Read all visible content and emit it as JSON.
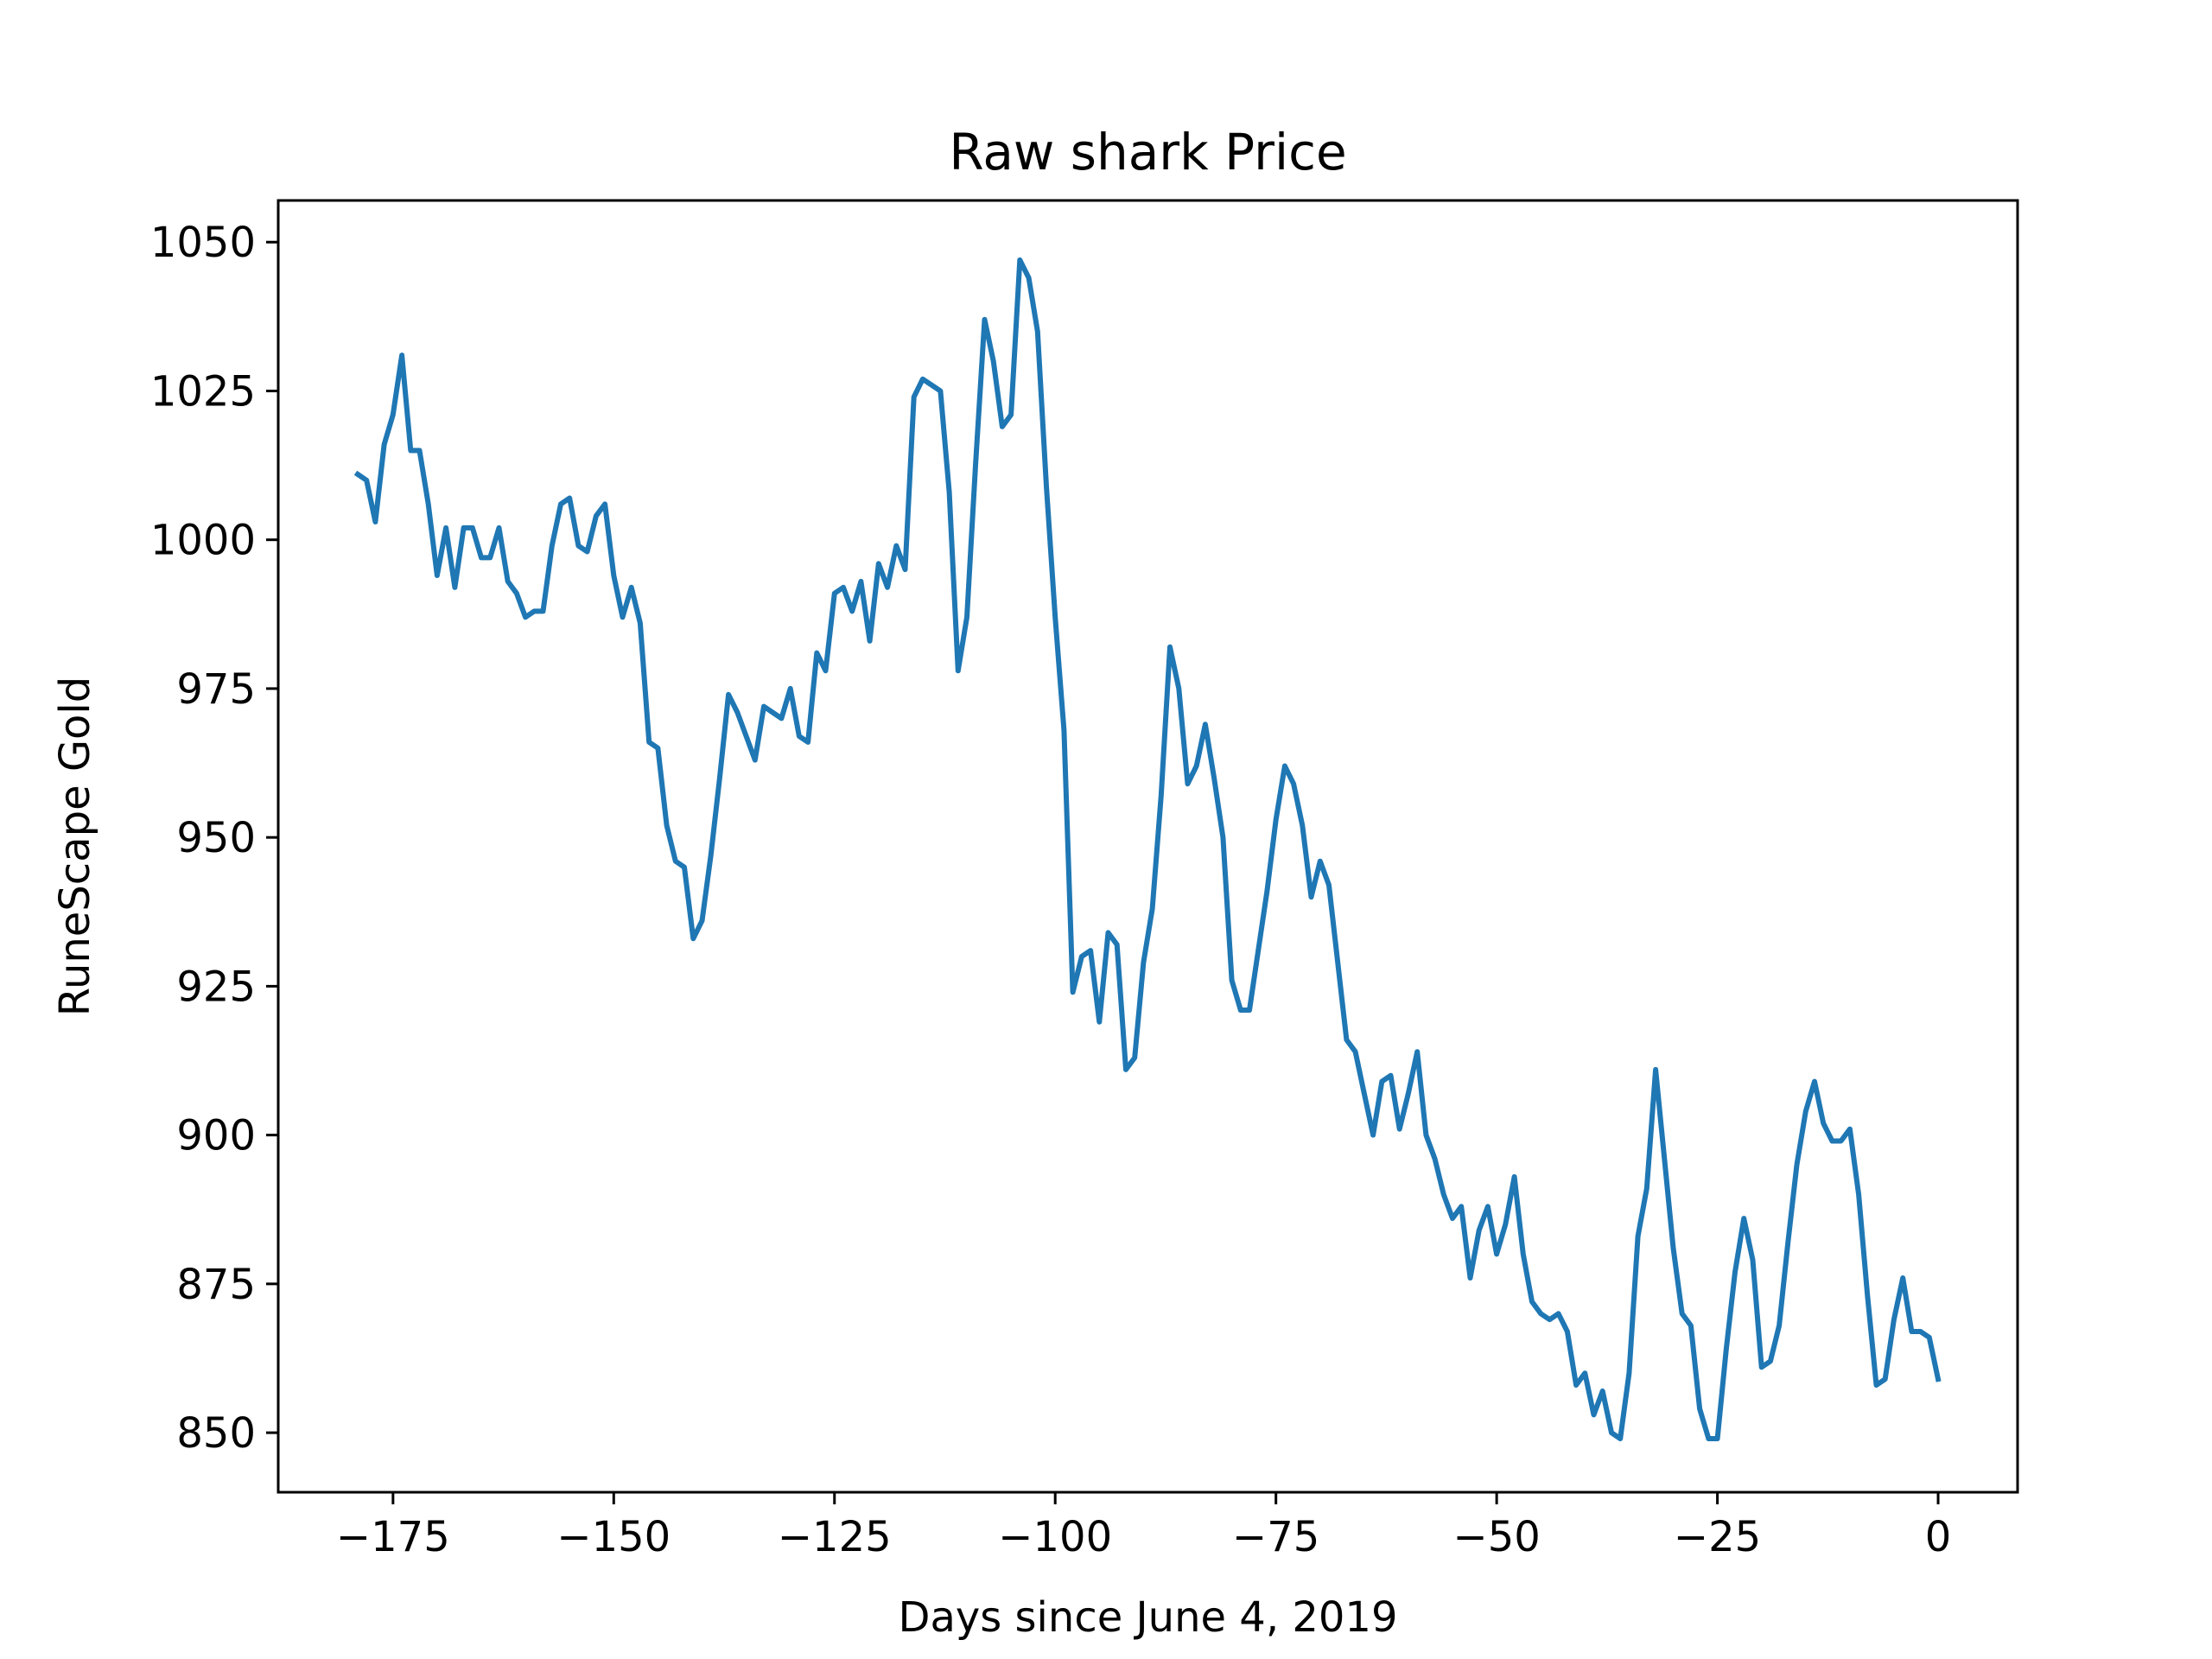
{
  "chart_data": {
    "type": "line",
    "title": "Raw shark Price",
    "xlabel": "Days since June 4, 2019",
    "ylabel": "RuneScape Gold",
    "xlim": [
      -188,
      9
    ],
    "ylim": [
      840,
      1057
    ],
    "xticks": [
      -175,
      -150,
      -125,
      -100,
      -75,
      -50,
      -25,
      0
    ],
    "xtick_labels": [
      "−175",
      "−150",
      "−125",
      "−100",
      "−75",
      "−50",
      "−25",
      "0"
    ],
    "yticks": [
      850,
      875,
      900,
      925,
      950,
      975,
      1000,
      1025,
      1050
    ],
    "ytick_labels": [
      "850",
      "875",
      "900",
      "925",
      "950",
      "975",
      "1000",
      "1025",
      "1050"
    ],
    "grid": false,
    "series": [
      {
        "color": "#1f77b4",
        "points": [
          [
            -179,
            1011
          ],
          [
            -178,
            1010
          ],
          [
            -177,
            1003
          ],
          [
            -176,
            1016
          ],
          [
            -175,
            1021
          ],
          [
            -174,
            1031
          ],
          [
            -173,
            1015
          ],
          [
            -172,
            1015
          ],
          [
            -171,
            1006
          ],
          [
            -170,
            994
          ],
          [
            -169,
            1002
          ],
          [
            -168,
            992
          ],
          [
            -167,
            1002
          ],
          [
            -166,
            1002
          ],
          [
            -165,
            997
          ],
          [
            -164,
            997
          ],
          [
            -163,
            1002
          ],
          [
            -162,
            993
          ],
          [
            -161,
            991
          ],
          [
            -160,
            987
          ],
          [
            -159,
            988
          ],
          [
            -158,
            988
          ],
          [
            -157,
            999
          ],
          [
            -156,
            1006
          ],
          [
            -155,
            1007
          ],
          [
            -154,
            999
          ],
          [
            -153,
            998
          ],
          [
            -152,
            1004
          ],
          [
            -151,
            1006
          ],
          [
            -150,
            994
          ],
          [
            -149,
            987
          ],
          [
            -148,
            992
          ],
          [
            -147,
            986
          ],
          [
            -146,
            966
          ],
          [
            -145,
            965
          ],
          [
            -144,
            952
          ],
          [
            -143,
            946
          ],
          [
            -142,
            945
          ],
          [
            -141,
            933
          ],
          [
            -140,
            936
          ],
          [
            -139,
            947
          ],
          [
            -138,
            960
          ],
          [
            -137,
            974
          ],
          [
            -136,
            971
          ],
          [
            -135,
            967
          ],
          [
            -134,
            963
          ],
          [
            -133,
            972
          ],
          [
            -132,
            971
          ],
          [
            -131,
            970
          ],
          [
            -130,
            975
          ],
          [
            -129,
            967
          ],
          [
            -128,
            966
          ],
          [
            -127,
            981
          ],
          [
            -126,
            978
          ],
          [
            -125,
            991
          ],
          [
            -124,
            992
          ],
          [
            -123,
            988
          ],
          [
            -122,
            993
          ],
          [
            -121,
            983
          ],
          [
            -120,
            996
          ],
          [
            -119,
            992
          ],
          [
            -118,
            999
          ],
          [
            -117,
            995
          ],
          [
            -116,
            1024
          ],
          [
            -115,
            1027
          ],
          [
            -114,
            1026
          ],
          [
            -113,
            1025
          ],
          [
            -112,
            1008
          ],
          [
            -111,
            978
          ],
          [
            -110,
            987
          ],
          [
            -109,
            1013
          ],
          [
            -108,
            1037
          ],
          [
            -107,
            1030
          ],
          [
            -106,
            1019
          ],
          [
            -105,
            1021
          ],
          [
            -104,
            1047
          ],
          [
            -103,
            1044
          ],
          [
            -102,
            1035
          ],
          [
            -101,
            1009
          ],
          [
            -100,
            987
          ],
          [
            -99,
            968
          ],
          [
            -98,
            924
          ],
          [
            -97,
            930
          ],
          [
            -96,
            931
          ],
          [
            -95,
            919
          ],
          [
            -94,
            934
          ],
          [
            -93,
            932
          ],
          [
            -92,
            911
          ],
          [
            -91,
            913
          ],
          [
            -90,
            929
          ],
          [
            -89,
            938
          ],
          [
            -88,
            957
          ],
          [
            -87,
            982
          ],
          [
            -86,
            975
          ],
          [
            -85,
            959
          ],
          [
            -84,
            962
          ],
          [
            -83,
            969
          ],
          [
            -82,
            960
          ],
          [
            -81,
            950
          ],
          [
            -80,
            926
          ],
          [
            -79,
            921
          ],
          [
            -78,
            921
          ],
          [
            -77,
            931
          ],
          [
            -76,
            941
          ],
          [
            -75,
            953
          ],
          [
            -74,
            962
          ],
          [
            -73,
            959
          ],
          [
            -72,
            952
          ],
          [
            -71,
            940
          ],
          [
            -70,
            946
          ],
          [
            -69,
            942
          ],
          [
            -68,
            929
          ],
          [
            -67,
            916
          ],
          [
            -66,
            914
          ],
          [
            -65,
            907
          ],
          [
            -64,
            900
          ],
          [
            -63,
            909
          ],
          [
            -62,
            910
          ],
          [
            -61,
            901
          ],
          [
            -60,
            907
          ],
          [
            -59,
            914
          ],
          [
            -58,
            900
          ],
          [
            -57,
            896
          ],
          [
            -56,
            890
          ],
          [
            -55,
            886
          ],
          [
            -54,
            888
          ],
          [
            -53,
            876
          ],
          [
            -52,
            884
          ],
          [
            -51,
            888
          ],
          [
            -50,
            880
          ],
          [
            -49,
            885
          ],
          [
            -48,
            893
          ],
          [
            -47,
            880
          ],
          [
            -46,
            872
          ],
          [
            -45,
            870
          ],
          [
            -44,
            869
          ],
          [
            -43,
            870
          ],
          [
            -42,
            867
          ],
          [
            -41,
            858
          ],
          [
            -40,
            860
          ],
          [
            -39,
            853
          ],
          [
            -38,
            857
          ],
          [
            -37,
            850
          ],
          [
            -36,
            849
          ],
          [
            -35,
            860
          ],
          [
            -34,
            883
          ],
          [
            -33,
            891
          ],
          [
            -32,
            911
          ],
          [
            -31,
            896
          ],
          [
            -30,
            881
          ],
          [
            -29,
            870
          ],
          [
            -28,
            868
          ],
          [
            -27,
            854
          ],
          [
            -26,
            849
          ],
          [
            -25,
            849
          ],
          [
            -24,
            864
          ],
          [
            -23,
            877
          ],
          [
            -22,
            886
          ],
          [
            -21,
            879
          ],
          [
            -20,
            861
          ],
          [
            -19,
            862
          ],
          [
            -18,
            868
          ],
          [
            -17,
            882
          ],
          [
            -16,
            895
          ],
          [
            -15,
            904
          ],
          [
            -14,
            909
          ],
          [
            -13,
            902
          ],
          [
            -12,
            899
          ],
          [
            -11,
            899
          ],
          [
            -10,
            901
          ],
          [
            -9,
            890
          ],
          [
            -8,
            873
          ],
          [
            -7,
            858
          ],
          [
            -6,
            859
          ],
          [
            -5,
            869
          ],
          [
            -4,
            876
          ],
          [
            -3,
            867
          ],
          [
            -2,
            867
          ],
          [
            -1,
            866
          ],
          [
            0,
            859
          ]
        ]
      }
    ]
  }
}
